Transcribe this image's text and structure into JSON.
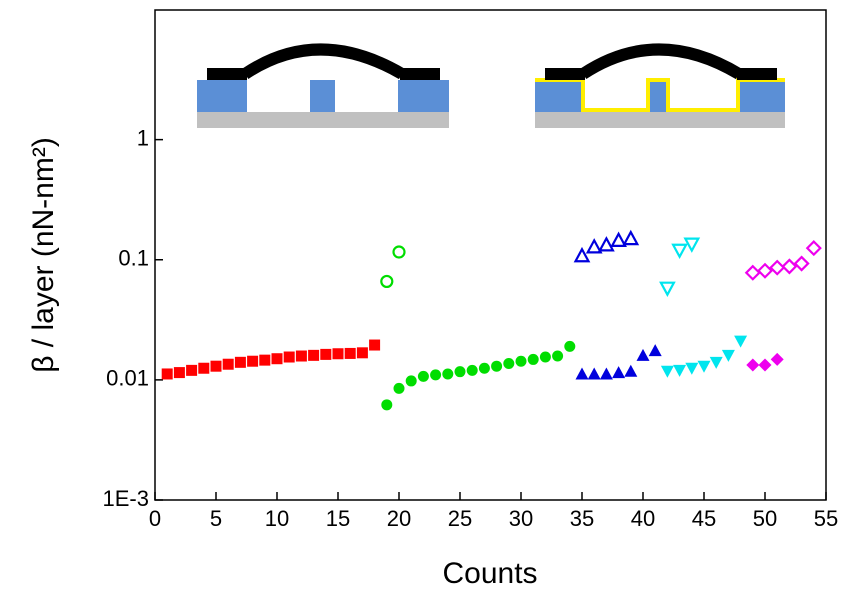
{
  "chart_data": {
    "type": "scatter",
    "x_label": "Counts",
    "y_label": "β / layer (nN-nm²)",
    "log_y": true,
    "xlim": [
      0,
      55
    ],
    "xticks": [
      0,
      5,
      10,
      15,
      20,
      25,
      30,
      35,
      40,
      45,
      50,
      55
    ],
    "ylim": [
      0.001,
      12
    ],
    "yticks": [
      {
        "value": 0.001,
        "label": "1E-3"
      },
      0.01,
      0.1,
      1
    ],
    "series": [
      {
        "color": "#ff0000",
        "marker": "square",
        "filled": true,
        "x": [
          1,
          2,
          3,
          4,
          5,
          6,
          7,
          8,
          9,
          10,
          11,
          12,
          13,
          14,
          15,
          16,
          17,
          18
        ],
        "values": [
          0.0112,
          0.0115,
          0.012,
          0.0125,
          0.013,
          0.0135,
          0.014,
          0.0143,
          0.0146,
          0.015,
          0.0155,
          0.0158,
          0.016,
          0.0163,
          0.0165,
          0.0166,
          0.0168,
          0.0195
        ]
      },
      {
        "color": "#00dd00",
        "marker": "circle",
        "filled": false,
        "x": [
          19,
          20
        ],
        "values": [
          0.066,
          0.116
        ]
      },
      {
        "color": "#00dd00",
        "marker": "circle",
        "filled": true,
        "x": [
          19,
          20,
          21,
          22,
          23,
          24,
          25,
          26,
          27,
          28,
          29,
          30,
          31,
          32,
          33,
          34
        ],
        "values": [
          0.0062,
          0.0085,
          0.0098,
          0.0107,
          0.011,
          0.0112,
          0.0117,
          0.012,
          0.0125,
          0.013,
          0.0137,
          0.0143,
          0.0148,
          0.0155,
          0.0158,
          0.019
        ]
      },
      {
        "color": "#0000dd",
        "marker": "triangle-up",
        "filled": false,
        "x": [
          35,
          36,
          37,
          38,
          39
        ],
        "values": [
          0.108,
          0.128,
          0.133,
          0.145,
          0.15
        ]
      },
      {
        "color": "#0000dd",
        "marker": "triangle-up",
        "filled": true,
        "x": [
          35,
          36,
          37,
          38,
          39,
          40,
          41
        ],
        "values": [
          0.0112,
          0.0112,
          0.0112,
          0.0115,
          0.0118,
          0.016,
          0.0175
        ]
      },
      {
        "color": "#00e5ee",
        "marker": "triangle-down",
        "filled": false,
        "x": [
          42,
          43,
          44
        ],
        "values": [
          0.058,
          0.12,
          0.135
        ]
      },
      {
        "color": "#00e5ee",
        "marker": "triangle-down",
        "filled": true,
        "x": [
          42,
          43,
          44,
          45,
          46,
          47,
          48
        ],
        "values": [
          0.0118,
          0.012,
          0.0125,
          0.013,
          0.014,
          0.016,
          0.021
        ]
      },
      {
        "color": "#ee00ee",
        "marker": "diamond",
        "filled": false,
        "x": [
          49,
          50,
          51,
          52,
          53,
          54
        ],
        "values": [
          0.078,
          0.081,
          0.086,
          0.088,
          0.093,
          0.125
        ]
      },
      {
        "color": "#ee00ee",
        "marker": "diamond",
        "filled": true,
        "x": [
          49,
          50,
          51
        ],
        "values": [
          0.0133,
          0.0133,
          0.0148
        ]
      }
    ]
  }
}
